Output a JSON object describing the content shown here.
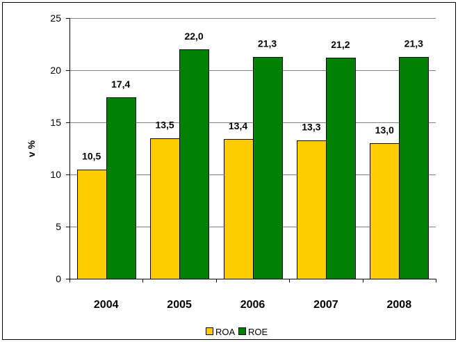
{
  "chart_data": {
    "type": "bar",
    "categories": [
      "2004",
      "2005",
      "2006",
      "2007",
      "2008"
    ],
    "series": [
      {
        "name": "ROA",
        "values": [
          10.5,
          13.5,
          13.4,
          13.3,
          13.0
        ],
        "labels": [
          "10,5",
          "13,5",
          "13,4",
          "13,3",
          "13,0"
        ],
        "color": "#FFCC00"
      },
      {
        "name": "ROE",
        "values": [
          17.4,
          22.0,
          21.3,
          21.2,
          21.3
        ],
        "labels": [
          "17,4",
          "22,0",
          "21,3",
          "21,2",
          "21,3"
        ],
        "color": "#008000"
      }
    ],
    "ylabel": "v %",
    "ylim": [
      0,
      25
    ],
    "yticks": [
      0,
      5,
      10,
      15,
      20,
      25
    ],
    "grid": true,
    "legend": "bottom"
  }
}
